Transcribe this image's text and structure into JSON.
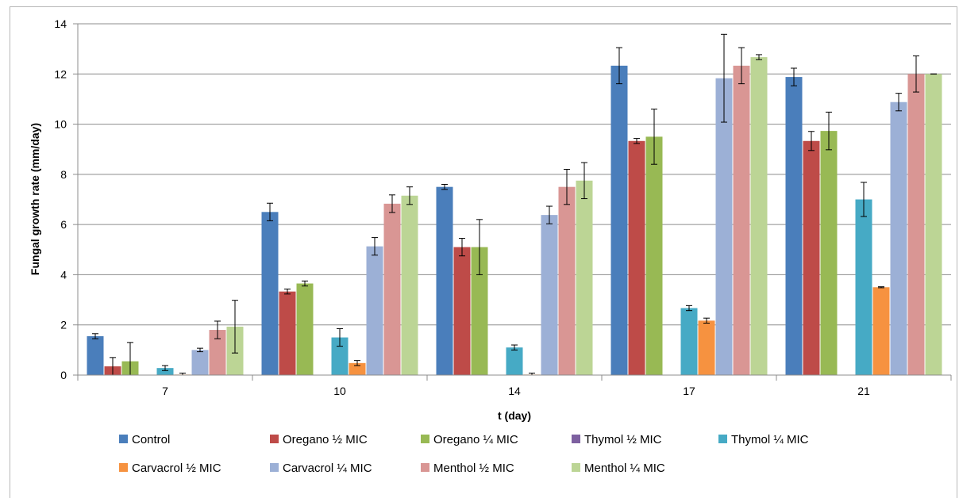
{
  "chart_data": {
    "type": "bar",
    "title": "",
    "xlabel": "t (day)",
    "ylabel": "Fungal growth rate (mm/day)",
    "ylim": [
      0,
      14
    ],
    "yticks": [
      0,
      2,
      4,
      6,
      8,
      10,
      12,
      14
    ],
    "grid": true,
    "legend_position": "bottom",
    "categories": [
      "7",
      "10",
      "14",
      "17",
      "21"
    ],
    "series": [
      {
        "name": "Control",
        "color": "#4a7ebb",
        "values": [
          1.55,
          6.5,
          7.5,
          12.33,
          11.88
        ],
        "errors": [
          0.1,
          0.35,
          0.1,
          0.72,
          0.35
        ]
      },
      {
        "name": "Oregano ½ MIC",
        "color": "#be4b48",
        "values": [
          0.35,
          3.33,
          5.1,
          9.33,
          9.33
        ],
        "errors": [
          0.35,
          0.1,
          0.35,
          0.1,
          0.38
        ]
      },
      {
        "name": "Oregano ¼ MIC",
        "color": "#98b954",
        "values": [
          0.55,
          3.65,
          5.1,
          9.5,
          9.73
        ],
        "errors": [
          0.75,
          0.1,
          1.1,
          1.1,
          0.75
        ]
      },
      {
        "name": "Thymol ½ MIC",
        "color": "#7d60a0",
        "values": [
          0,
          0,
          0,
          0,
          0
        ],
        "errors": [
          0,
          0,
          0,
          0,
          0
        ]
      },
      {
        "name": "Thymol ¼ MIC",
        "color": "#46aac5",
        "values": [
          0.28,
          1.5,
          1.1,
          2.67,
          7.0
        ],
        "errors": [
          0.1,
          0.35,
          0.1,
          0.1,
          0.68
        ]
      },
      {
        "name": "Carvacrol ½ MIC",
        "color": "#f69240",
        "values": [
          0.02,
          0.48,
          0.02,
          2.17,
          3.5
        ],
        "errors": [
          0.06,
          0.1,
          0.06,
          0.1,
          0.02
        ]
      },
      {
        "name": "Carvacrol ¼ MIC",
        "color": "#9cb0d6",
        "values": [
          1.0,
          5.13,
          6.38,
          11.83,
          10.88
        ],
        "errors": [
          0.07,
          0.35,
          0.35,
          1.75,
          0.35
        ]
      },
      {
        "name": "Menthol ½ MIC",
        "color": "#d99694",
        "values": [
          1.8,
          6.83,
          7.5,
          12.33,
          12.0
        ],
        "errors": [
          0.35,
          0.35,
          0.7,
          0.72,
          0.72
        ]
      },
      {
        "name": "Menthol ¼ MIC",
        "color": "#bcd595",
        "values": [
          1.93,
          7.15,
          7.75,
          12.67,
          12.0
        ],
        "errors": [
          1.05,
          0.35,
          0.72,
          0.1,
          0.0
        ]
      }
    ]
  }
}
